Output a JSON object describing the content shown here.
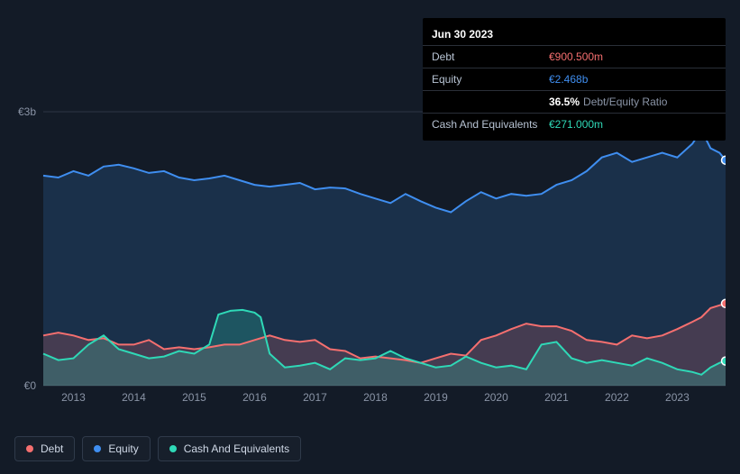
{
  "chart": {
    "type": "area",
    "background_color": "#131b27",
    "grid_color": "#2c3645",
    "y_axis": {
      "min": 0,
      "max": 3,
      "ticks": [
        0,
        3
      ],
      "tick_labels": [
        "€0",
        "€3b"
      ]
    },
    "x_axis": {
      "min": 2012.5,
      "max": 2023.8,
      "ticks": [
        2013,
        2014,
        2015,
        2016,
        2017,
        2018,
        2019,
        2020,
        2021,
        2022,
        2023
      ],
      "tick_labels": [
        "2013",
        "2014",
        "2015",
        "2016",
        "2017",
        "2018",
        "2019",
        "2020",
        "2021",
        "2022",
        "2023"
      ]
    },
    "series": [
      {
        "id": "equity",
        "label": "Equity",
        "color": "#3f8ef0",
        "fill": "rgba(63,142,240,0.18)",
        "points": [
          [
            2012.5,
            2.3
          ],
          [
            2012.75,
            2.28
          ],
          [
            2013,
            2.35
          ],
          [
            2013.25,
            2.3
          ],
          [
            2013.5,
            2.4
          ],
          [
            2013.75,
            2.42
          ],
          [
            2014,
            2.38
          ],
          [
            2014.25,
            2.33
          ],
          [
            2014.5,
            2.35
          ],
          [
            2014.75,
            2.28
          ],
          [
            2015,
            2.25
          ],
          [
            2015.25,
            2.27
          ],
          [
            2015.5,
            2.3
          ],
          [
            2015.75,
            2.25
          ],
          [
            2016,
            2.2
          ],
          [
            2016.25,
            2.18
          ],
          [
            2016.5,
            2.2
          ],
          [
            2016.75,
            2.22
          ],
          [
            2017,
            2.15
          ],
          [
            2017.25,
            2.17
          ],
          [
            2017.5,
            2.16
          ],
          [
            2017.75,
            2.1
          ],
          [
            2018,
            2.05
          ],
          [
            2018.25,
            2.0
          ],
          [
            2018.5,
            2.1
          ],
          [
            2018.75,
            2.02
          ],
          [
            2019,
            1.95
          ],
          [
            2019.25,
            1.9
          ],
          [
            2019.5,
            2.02
          ],
          [
            2019.75,
            2.12
          ],
          [
            2020,
            2.05
          ],
          [
            2020.25,
            2.1
          ],
          [
            2020.5,
            2.08
          ],
          [
            2020.75,
            2.1
          ],
          [
            2021,
            2.2
          ],
          [
            2021.25,
            2.25
          ],
          [
            2021.5,
            2.35
          ],
          [
            2021.75,
            2.5
          ],
          [
            2022,
            2.55
          ],
          [
            2022.25,
            2.45
          ],
          [
            2022.5,
            2.5
          ],
          [
            2022.75,
            2.55
          ],
          [
            2023,
            2.5
          ],
          [
            2023.25,
            2.65
          ],
          [
            2023.4,
            2.8
          ],
          [
            2023.55,
            2.6
          ],
          [
            2023.7,
            2.55
          ],
          [
            2023.8,
            2.47
          ]
        ]
      },
      {
        "id": "debt",
        "label": "Debt",
        "color": "#f56f6f",
        "fill": "rgba(245,111,111,0.20)",
        "points": [
          [
            2012.5,
            0.55
          ],
          [
            2012.75,
            0.58
          ],
          [
            2013,
            0.55
          ],
          [
            2013.25,
            0.5
          ],
          [
            2013.5,
            0.52
          ],
          [
            2013.75,
            0.45
          ],
          [
            2014,
            0.45
          ],
          [
            2014.25,
            0.5
          ],
          [
            2014.5,
            0.4
          ],
          [
            2014.75,
            0.42
          ],
          [
            2015,
            0.4
          ],
          [
            2015.25,
            0.42
          ],
          [
            2015.5,
            0.45
          ],
          [
            2015.75,
            0.45
          ],
          [
            2016,
            0.5
          ],
          [
            2016.25,
            0.55
          ],
          [
            2016.5,
            0.5
          ],
          [
            2016.75,
            0.48
          ],
          [
            2017,
            0.5
          ],
          [
            2017.25,
            0.4
          ],
          [
            2017.5,
            0.38
          ],
          [
            2017.75,
            0.3
          ],
          [
            2018,
            0.32
          ],
          [
            2018.25,
            0.3
          ],
          [
            2018.5,
            0.28
          ],
          [
            2018.75,
            0.25
          ],
          [
            2019,
            0.3
          ],
          [
            2019.25,
            0.35
          ],
          [
            2019.5,
            0.33
          ],
          [
            2019.75,
            0.5
          ],
          [
            2020,
            0.55
          ],
          [
            2020.25,
            0.62
          ],
          [
            2020.5,
            0.68
          ],
          [
            2020.75,
            0.65
          ],
          [
            2021,
            0.65
          ],
          [
            2021.25,
            0.6
          ],
          [
            2021.5,
            0.5
          ],
          [
            2021.75,
            0.48
          ],
          [
            2022,
            0.45
          ],
          [
            2022.25,
            0.55
          ],
          [
            2022.5,
            0.52
          ],
          [
            2022.75,
            0.55
          ],
          [
            2023,
            0.62
          ],
          [
            2023.25,
            0.7
          ],
          [
            2023.4,
            0.75
          ],
          [
            2023.55,
            0.85
          ],
          [
            2023.7,
            0.88
          ],
          [
            2023.8,
            0.9
          ]
        ]
      },
      {
        "id": "cash",
        "label": "Cash And Equivalents",
        "color": "#2fd9b7",
        "fill": "rgba(47,217,183,0.22)",
        "points": [
          [
            2012.5,
            0.35
          ],
          [
            2012.75,
            0.28
          ],
          [
            2013,
            0.3
          ],
          [
            2013.25,
            0.45
          ],
          [
            2013.5,
            0.55
          ],
          [
            2013.75,
            0.4
          ],
          [
            2014,
            0.35
          ],
          [
            2014.25,
            0.3
          ],
          [
            2014.5,
            0.32
          ],
          [
            2014.75,
            0.38
          ],
          [
            2015,
            0.35
          ],
          [
            2015.25,
            0.45
          ],
          [
            2015.4,
            0.78
          ],
          [
            2015.6,
            0.82
          ],
          [
            2015.8,
            0.83
          ],
          [
            2016,
            0.8
          ],
          [
            2016.1,
            0.75
          ],
          [
            2016.25,
            0.35
          ],
          [
            2016.5,
            0.2
          ],
          [
            2016.75,
            0.22
          ],
          [
            2017,
            0.25
          ],
          [
            2017.25,
            0.18
          ],
          [
            2017.5,
            0.3
          ],
          [
            2017.75,
            0.28
          ],
          [
            2018,
            0.3
          ],
          [
            2018.25,
            0.38
          ],
          [
            2018.5,
            0.3
          ],
          [
            2018.75,
            0.25
          ],
          [
            2019,
            0.2
          ],
          [
            2019.25,
            0.22
          ],
          [
            2019.5,
            0.32
          ],
          [
            2019.75,
            0.25
          ],
          [
            2020,
            0.2
          ],
          [
            2020.25,
            0.22
          ],
          [
            2020.5,
            0.18
          ],
          [
            2020.75,
            0.45
          ],
          [
            2021,
            0.48
          ],
          [
            2021.25,
            0.3
          ],
          [
            2021.5,
            0.25
          ],
          [
            2021.75,
            0.28
          ],
          [
            2022,
            0.25
          ],
          [
            2022.25,
            0.22
          ],
          [
            2022.5,
            0.3
          ],
          [
            2022.75,
            0.25
          ],
          [
            2023,
            0.18
          ],
          [
            2023.25,
            0.15
          ],
          [
            2023.4,
            0.12
          ],
          [
            2023.55,
            0.2
          ],
          [
            2023.7,
            0.25
          ],
          [
            2023.8,
            0.27
          ]
        ]
      }
    ],
    "end_markers": [
      {
        "series": "equity",
        "x": 2023.8,
        "y": 2.47
      },
      {
        "series": "debt",
        "x": 2023.8,
        "y": 0.9
      },
      {
        "series": "cash",
        "x": 2023.8,
        "y": 0.27
      }
    ]
  },
  "tooltip": {
    "title": "Jun 30 2023",
    "rows": [
      {
        "label": "Debt",
        "value": "€900.500m",
        "class": "val-debt"
      },
      {
        "label": "Equity",
        "value": "€2.468b",
        "class": "val-equity"
      },
      {
        "label": "",
        "pct": "36.5%",
        "suffix": "Debt/Equity Ratio"
      },
      {
        "label": "Cash And Equivalents",
        "value": "€271.000m",
        "class": "val-cash"
      }
    ]
  },
  "legend": [
    {
      "id": "debt",
      "label": "Debt",
      "color": "#f56f6f"
    },
    {
      "id": "equity",
      "label": "Equity",
      "color": "#3f8ef0"
    },
    {
      "id": "cash",
      "label": "Cash And Equivalents",
      "color": "#2fd9b7"
    }
  ]
}
